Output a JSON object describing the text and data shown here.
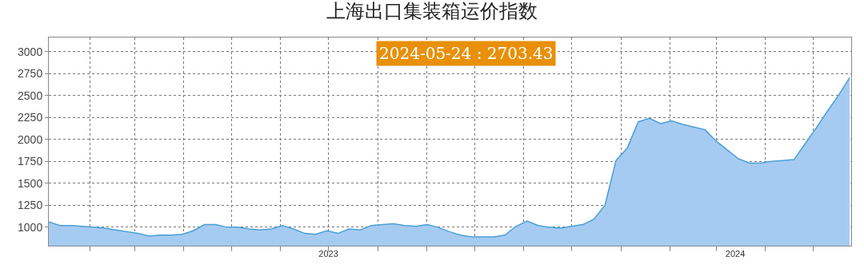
{
  "chart_data": {
    "type": "area",
    "title": "上海出口集装箱运价指数",
    "annotations": [
      "2024-05-24 : 2703.43"
    ],
    "x": [
      "2023-01-06",
      "2023-01-13",
      "2023-01-20",
      "2023-01-27",
      "2023-02-03",
      "2023-02-10",
      "2023-02-17",
      "2023-02-24",
      "2023-03-03",
      "2023-03-10",
      "2023-03-17",
      "2023-03-24",
      "2023-03-31",
      "2023-04-07",
      "2023-04-14",
      "2023-04-21",
      "2023-04-28",
      "2023-05-05",
      "2023-05-12",
      "2023-05-19",
      "2023-05-26",
      "2023-06-02",
      "2023-06-09",
      "2023-06-16",
      "2023-06-23",
      "2023-06-30",
      "2023-07-07",
      "2023-07-14",
      "2023-07-21",
      "2023-07-28",
      "2023-08-04",
      "2023-08-11",
      "2023-08-18",
      "2023-08-25",
      "2023-09-01",
      "2023-09-08",
      "2023-09-15",
      "2023-09-22",
      "2023-09-29",
      "2023-10-06",
      "2023-10-13",
      "2023-10-20",
      "2023-10-27",
      "2023-11-03",
      "2023-11-10",
      "2023-11-17",
      "2023-11-24",
      "2023-12-01",
      "2023-12-08",
      "2023-12-15",
      "2023-12-22",
      "2023-12-29",
      "2024-01-05",
      "2024-01-12",
      "2024-01-19",
      "2024-01-26",
      "2024-02-02",
      "2024-02-09",
      "2024-02-16",
      "2024-02-23",
      "2024-03-01",
      "2024-03-08",
      "2024-03-15",
      "2024-03-22",
      "2024-03-29",
      "2024-04-05",
      "2024-04-12",
      "2024-04-19",
      "2024-04-26",
      "2024-05-03",
      "2024-05-10",
      "2024-05-17",
      "2024-05-24"
    ],
    "series": [
      {
        "color": "#4a9fd4",
        "values": [
          1060,
          1020,
          1020,
          1010,
          1000,
          990,
          970,
          950,
          930,
          900,
          910,
          910,
          920,
          960,
          1030,
          1030,
          1000,
          1000,
          980,
          970,
          980,
          1020,
          980,
          930,
          920,
          960,
          930,
          980,
          970,
          1020,
          1030,
          1040,
          1020,
          1010,
          1030,
          1000,
          950,
          910,
          890,
          890,
          890,
          910,
          1010,
          1070,
          1020,
          1000,
          990,
          1010,
          1030,
          1090,
          1250,
          1760,
          1900,
          2200,
          2240,
          2180,
          2210,
          2170,
          2140,
          2110,
          1980,
          1880,
          1780,
          1730,
          1730,
          1750,
          1760,
          1770,
          1950,
          2130,
          2320,
          2500,
          2703.43
        ]
      }
    ],
    "xlim": [
      "2023-01-06",
      "2024-05-25"
    ],
    "xticks": [
      {
        "value": "2023-02-01",
        "label": null
      },
      {
        "value": "2023-03-01",
        "label": null
      },
      {
        "value": "2023-04-01",
        "label": null
      },
      {
        "value": "2023-05-01",
        "label": null
      },
      {
        "value": "2023-06-01",
        "label": null
      },
      {
        "value": "2023-07-01",
        "label": null
      },
      {
        "value": "2023-08-01",
        "label": null
      },
      {
        "value": "2023-09-01",
        "label": null
      },
      {
        "value": "2023-10-01",
        "label": null
      },
      {
        "value": "2023-11-01",
        "label": null
      },
      {
        "value": "2023-12-01",
        "label": null
      },
      {
        "value": "2024-01-01",
        "label": null
      },
      {
        "value": "2024-02-01",
        "label": null
      },
      {
        "value": "2024-03-01",
        "label": null
      },
      {
        "value": "2024-04-01",
        "label": null
      },
      {
        "value": "2024-05-01",
        "label": null
      },
      {
        "value": "2023-07-01",
        "label": "2023"
      },
      {
        "value": "2024-03-13",
        "label": "2024"
      }
    ],
    "ylim": [
      790,
      3160
    ],
    "yticks": [
      1000,
      1250,
      1500,
      1750,
      2000,
      2250,
      2500,
      2750,
      3000
    ],
    "grid": true
  }
}
